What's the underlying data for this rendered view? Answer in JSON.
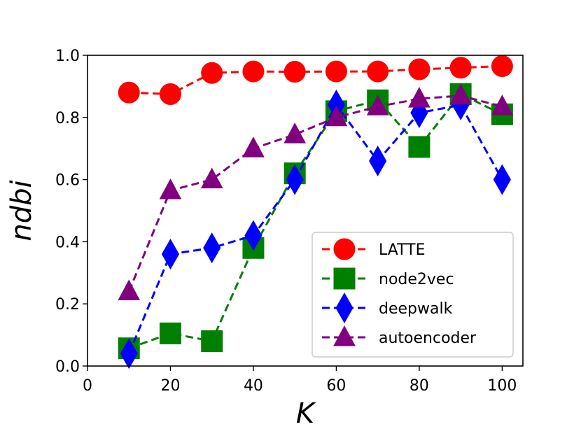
{
  "chart_data": {
    "type": "line",
    "xlabel": "K",
    "ylabel": "ndbi",
    "xlim": [
      0,
      105
    ],
    "ylim": [
      0,
      1.0
    ],
    "xticks": [
      0,
      20,
      40,
      60,
      80,
      100
    ],
    "yticks": [
      0.0,
      0.2,
      0.4,
      0.6,
      0.8,
      1.0
    ],
    "xtick_labels": [
      "0",
      "20",
      "40",
      "60",
      "80",
      "100"
    ],
    "ytick_labels": [
      "0.0",
      "0.2",
      "0.4",
      "0.6",
      "0.8",
      "1.0"
    ],
    "legend_position": "lower-right",
    "x": [
      10,
      20,
      30,
      40,
      50,
      60,
      70,
      80,
      90,
      100
    ],
    "series": [
      {
        "name": "LATTE",
        "color": "#ff0000",
        "marker": "circle",
        "values": [
          0.88,
          0.875,
          0.943,
          0.948,
          0.947,
          0.948,
          0.948,
          0.955,
          0.96,
          0.965
        ]
      },
      {
        "name": "node2vec",
        "color": "#008000",
        "marker": "square",
        "values": [
          0.057,
          0.105,
          0.08,
          0.38,
          0.62,
          0.82,
          0.855,
          0.705,
          0.875,
          0.81
        ]
      },
      {
        "name": "deepwalk",
        "color": "#0000ff",
        "marker": "diamond",
        "values": [
          0.04,
          0.36,
          0.38,
          0.42,
          0.6,
          0.84,
          0.66,
          0.815,
          0.84,
          0.6
        ]
      },
      {
        "name": "autoencoder",
        "color": "#800080",
        "marker": "triangle",
        "values": [
          0.24,
          0.565,
          0.6,
          0.7,
          0.745,
          0.8,
          0.835,
          0.86,
          0.87,
          0.835
        ]
      }
    ]
  }
}
